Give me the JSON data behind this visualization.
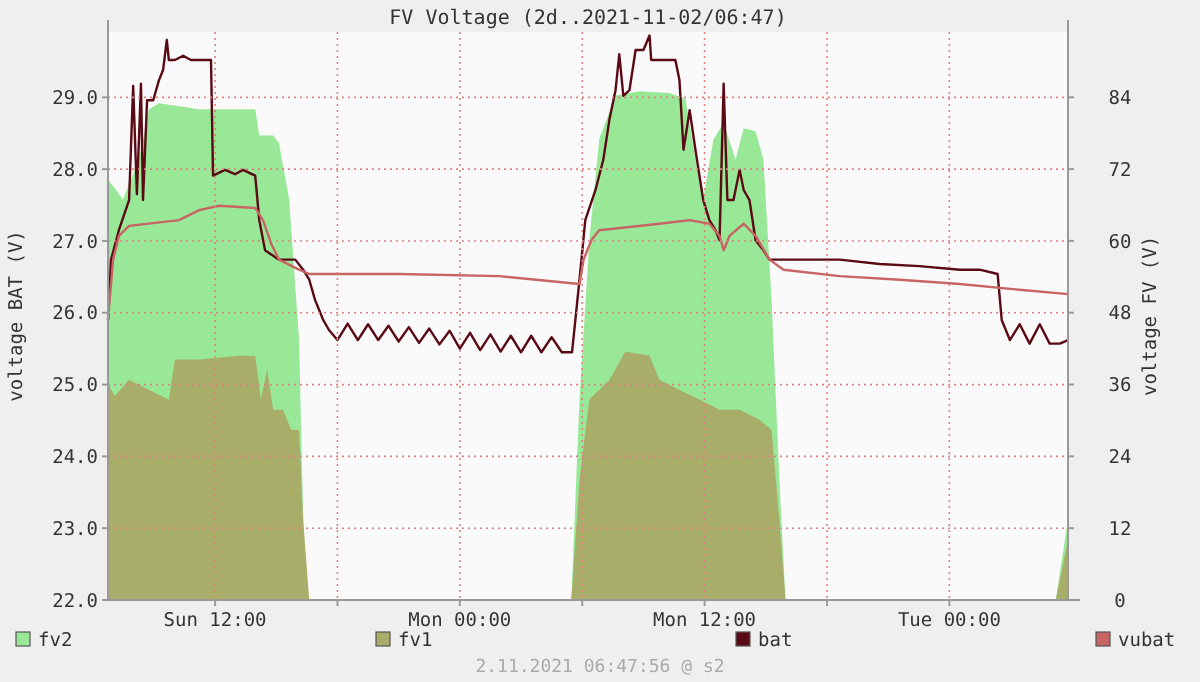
{
  "chart_data": {
    "type": "line",
    "title": "FV Voltage (2d..2021-11-02/06:47)",
    "ylabel": "voltage BAT (V)",
    "y2label": "voltage FV (V)",
    "xlim": [
      "2021-10-31T06:45",
      "2021-11-02T05:49"
    ],
    "xticks": [
      {
        "value": "2021-10-31T12:00",
        "label": "Sun 12:00"
      },
      {
        "value": "2021-10-31T18:00",
        "label": null
      },
      {
        "value": "2021-11-01T00:00",
        "label": "Mon 00:00"
      },
      {
        "value": "2021-11-01T06:00",
        "label": null
      },
      {
        "value": "2021-11-01T12:00",
        "label": "Mon 12:00"
      },
      {
        "value": "2021-11-01T18:00",
        "label": null
      },
      {
        "value": "2021-11-02T00:00",
        "label": "Tue 00:00"
      }
    ],
    "ylim": [
      22,
      29.91
    ],
    "yticks": [
      {
        "value": 22,
        "label": "22.0"
      },
      {
        "value": 23,
        "label": "23.0"
      },
      {
        "value": 24,
        "label": "24.0"
      },
      {
        "value": 25,
        "label": "25.0"
      },
      {
        "value": 26,
        "label": "26.0"
      },
      {
        "value": 27,
        "label": "27.0"
      },
      {
        "value": 28,
        "label": "28.0"
      },
      {
        "value": 29,
        "label": "29.0"
      }
    ],
    "y2lim": [
      0,
      94.9
    ],
    "y2ticks": [
      0,
      12,
      24,
      36,
      48,
      60,
      72,
      84
    ],
    "grid": true,
    "legend": "bottom",
    "annotations": [
      "2.11.2021 06:47:56 @ s2"
    ],
    "series": [
      {
        "name": "fv2",
        "type": "area",
        "axis": "y2",
        "color": "#98e898",
        "x": [
          "2021-10-31T06:45",
          "2021-10-31T07:29",
          "2021-10-31T08:16",
          "2021-10-31T08:46",
          "2021-10-31T09:15",
          "2021-10-31T11:13",
          "2021-10-31T12:41",
          "2021-10-31T13:58",
          "2021-10-31T14:10",
          "2021-10-31T14:51",
          "2021-10-31T15:08",
          "2021-10-31T15:38",
          "2021-10-31T16:07",
          "2021-10-31T16:25",
          "2021-11-01T05:28",
          "2021-11-01T05:52",
          "2021-11-01T06:21",
          "2021-11-01T06:50",
          "2021-11-01T07:38",
          "2021-11-01T08:48",
          "2021-11-01T10:17",
          "2021-11-01T11:04",
          "2021-11-01T11:33",
          "2021-11-01T11:56",
          "2021-11-01T12:26",
          "2021-11-01T12:56",
          "2021-11-01T13:31",
          "2021-11-01T13:55",
          "2021-11-01T14:30",
          "2021-11-01T14:53",
          "2021-11-01T15:17",
          "2021-11-01T15:40",
          "2021-11-01T15:58",
          "2021-11-02T05:13",
          "2021-11-02T05:49"
        ],
        "values": [
          70.3,
          66.9,
          73.6,
          82.0,
          83.0,
          82.0,
          82.0,
          82.0,
          77.6,
          77.6,
          76.3,
          66.9,
          43.5,
          0,
          0,
          33.5,
          60.2,
          77.0,
          84.3,
          85.0,
          84.7,
          83.7,
          73.6,
          66.9,
          77.0,
          79.7,
          73.6,
          78.8,
          78.3,
          73.6,
          50.2,
          20.1,
          0,
          0,
          13.4
        ]
      },
      {
        "name": "fv1",
        "type": "area",
        "axis": "y2",
        "color": "#a8ad6a",
        "x": [
          "2021-10-31T06:45",
          "2021-10-31T07:05",
          "2021-10-31T07:47",
          "2021-10-31T08:46",
          "2021-10-31T09:44",
          "2021-10-31T10:02",
          "2021-10-31T11:13",
          "2021-10-31T13:11",
          "2021-10-31T13:58",
          "2021-10-31T14:15",
          "2021-10-31T14:33",
          "2021-10-31T14:51",
          "2021-10-31T15:20",
          "2021-10-31T15:44",
          "2021-10-31T16:07",
          "2021-10-31T16:19",
          "2021-10-31T16:37",
          "2021-11-01T05:28",
          "2021-11-01T05:52",
          "2021-11-01T06:21",
          "2021-11-01T07:20",
          "2021-11-01T08:07",
          "2021-11-01T09:18",
          "2021-11-01T09:47",
          "2021-11-01T10:46",
          "2021-11-01T11:45",
          "2021-11-01T12:44",
          "2021-11-01T13:43",
          "2021-11-01T14:41",
          "2021-11-01T15:17",
          "2021-11-01T15:40",
          "2021-11-01T15:58",
          "2021-11-02T05:13",
          "2021-11-02T05:49"
        ],
        "values": [
          36.1,
          34.1,
          36.8,
          35.1,
          33.5,
          40.2,
          40.2,
          40.8,
          40.8,
          33.5,
          38.5,
          31.8,
          31.8,
          28.4,
          28.4,
          13.4,
          0,
          0,
          20.1,
          33.5,
          36.8,
          41.5,
          40.8,
          36.8,
          35.1,
          33.5,
          31.8,
          31.8,
          30.1,
          28.4,
          13.4,
          0,
          0,
          10.0
        ]
      },
      {
        "name": "bat",
        "color": "#5a0a14",
        "x": [
          "2021-10-31T06:45",
          "2021-10-31T06:54",
          "2021-10-31T07:17",
          "2021-10-31T07:47",
          "2021-10-31T07:59",
          "2021-10-31T08:10",
          "2021-10-31T08:22",
          "2021-10-31T08:28",
          "2021-10-31T08:40",
          "2021-10-31T08:58",
          "2021-10-31T09:15",
          "2021-10-31T09:27",
          "2021-10-31T09:38",
          "2021-10-31T09:44",
          "2021-10-31T10:02",
          "2021-10-31T10:26",
          "2021-10-31T10:49",
          "2021-10-31T11:37",
          "2021-10-31T11:48",
          "2021-10-31T11:54",
          "2021-10-31T12:29",
          "2021-10-31T12:59",
          "2021-10-31T13:22",
          "2021-10-31T13:58",
          "2021-10-31T14:10",
          "2021-10-31T14:27",
          "2021-10-31T15:08",
          "2021-10-31T15:56",
          "2021-10-31T16:19",
          "2021-10-31T16:37",
          "2021-10-31T16:54",
          "2021-10-31T17:18",
          "2021-10-31T17:35",
          "2021-10-31T18:00",
          "2021-10-31T18:30",
          "2021-10-31T19:00",
          "2021-10-31T19:30",
          "2021-10-31T20:00",
          "2021-10-31T20:30",
          "2021-10-31T21:00",
          "2021-10-31T21:30",
          "2021-10-31T22:00",
          "2021-10-31T22:30",
          "2021-10-31T23:00",
          "2021-10-31T23:30",
          "2021-11-01T00:00",
          "2021-11-01T00:30",
          "2021-11-01T01:00",
          "2021-11-01T01:30",
          "2021-11-01T02:00",
          "2021-11-01T02:30",
          "2021-11-01T03:00",
          "2021-11-01T03:30",
          "2021-11-01T04:00",
          "2021-11-01T04:30",
          "2021-11-01T05:00",
          "2021-11-01T05:30",
          "2021-11-01T05:52",
          "2021-11-01T06:09",
          "2021-11-01T06:39",
          "2021-11-01T07:02",
          "2021-11-01T07:20",
          "2021-11-01T07:38",
          "2021-11-01T07:49",
          "2021-11-01T08:01",
          "2021-11-01T08:19",
          "2021-11-01T08:37",
          "2021-11-01T09:00",
          "2021-11-01T09:18",
          "2021-11-01T09:23",
          "2021-11-01T09:47",
          "2021-11-01T10:34",
          "2021-11-01T10:46",
          "2021-11-01T10:58",
          "2021-11-01T11:16",
          "2021-11-01T11:33",
          "2021-11-01T11:56",
          "2021-11-01T12:14",
          "2021-11-01T12:32",
          "2021-11-01T12:44",
          "2021-11-01T12:56",
          "2021-11-01T13:07",
          "2021-11-01T13:25",
          "2021-11-01T13:43",
          "2021-11-01T13:55",
          "2021-11-01T14:12",
          "2021-11-01T14:30",
          "2021-11-01T14:53",
          "2021-11-01T15:11",
          "2021-11-01T16:39",
          "2021-11-01T18:37",
          "2021-11-01T20:35",
          "2021-11-01T22:32",
          "2021-11-02T00:31",
          "2021-11-02T01:29",
          "2021-11-02T02:22",
          "2021-11-02T02:34",
          "2021-11-02T02:58",
          "2021-11-02T03:27",
          "2021-11-02T03:56",
          "2021-11-02T04:26",
          "2021-11-02T04:55",
          "2021-11-02T05:25",
          "2021-11-02T05:49"
        ],
        "values": [
          25.9,
          26.74,
          27.15,
          27.57,
          29.16,
          27.65,
          29.19,
          27.57,
          28.96,
          28.96,
          29.24,
          29.38,
          29.8,
          29.52,
          29.52,
          29.58,
          29.52,
          29.52,
          29.52,
          27.91,
          27.99,
          27.93,
          27.99,
          27.91,
          27.29,
          26.87,
          26.74,
          26.74,
          26.6,
          26.46,
          26.18,
          25.9,
          25.76,
          25.62,
          25.85,
          25.62,
          25.84,
          25.62,
          25.82,
          25.6,
          25.8,
          25.58,
          25.78,
          25.56,
          25.75,
          25.5,
          25.72,
          25.48,
          25.7,
          25.46,
          25.68,
          25.45,
          25.68,
          25.45,
          25.66,
          25.45,
          25.45,
          26.46,
          27.29,
          27.71,
          28.13,
          28.69,
          29.1,
          29.6,
          29.02,
          29.1,
          29.66,
          29.66,
          29.86,
          29.52,
          29.52,
          29.52,
          29.24,
          28.27,
          28.82,
          28.27,
          27.57,
          27.29,
          27.15,
          27.01,
          29.19,
          27.57,
          27.57,
          27.99,
          27.71,
          27.57,
          27.01,
          26.87,
          26.74,
          26.74,
          26.74,
          26.68,
          26.65,
          26.6,
          26.6,
          26.54,
          25.9,
          25.62,
          25.84,
          25.57,
          25.84,
          25.57,
          25.57,
          25.62
        ]
      },
      {
        "name": "vubat",
        "color": "#c86464",
        "x": [
          "2021-10-31T06:45",
          "2021-10-31T07:00",
          "2021-10-31T07:17",
          "2021-10-31T07:47",
          "2021-10-31T10:14",
          "2021-10-31T11:13",
          "2021-10-31T12:12",
          "2021-10-31T13:58",
          "2021-10-31T14:21",
          "2021-10-31T14:45",
          "2021-10-31T15:08",
          "2021-10-31T16:07",
          "2021-10-31T16:37",
          "2021-10-31T21:02",
          "2021-11-01T01:56",
          "2021-11-01T05:52",
          "2021-11-01T06:04",
          "2021-11-01T06:27",
          "2021-11-01T06:50",
          "2021-11-01T09:47",
          "2021-11-01T11:16",
          "2021-11-01T12:14",
          "2021-11-01T12:44",
          "2021-11-01T12:56",
          "2021-11-01T13:13",
          "2021-11-01T13:55",
          "2021-11-01T14:30",
          "2021-11-01T15:11",
          "2021-11-01T15:52",
          "2021-11-01T18:37",
          "2021-11-01T21:34",
          "2021-11-02T00:31",
          "2021-11-02T03:27",
          "2021-11-02T05:49"
        ],
        "values": [
          25.9,
          26.74,
          27.07,
          27.21,
          27.29,
          27.43,
          27.49,
          27.46,
          27.29,
          26.96,
          26.74,
          26.6,
          26.54,
          26.54,
          26.51,
          26.4,
          26.74,
          27.01,
          27.15,
          27.24,
          27.29,
          27.24,
          27.07,
          26.87,
          27.07,
          27.24,
          27.07,
          26.74,
          26.6,
          26.51,
          26.46,
          26.4,
          26.32,
          26.26
        ]
      }
    ]
  }
}
